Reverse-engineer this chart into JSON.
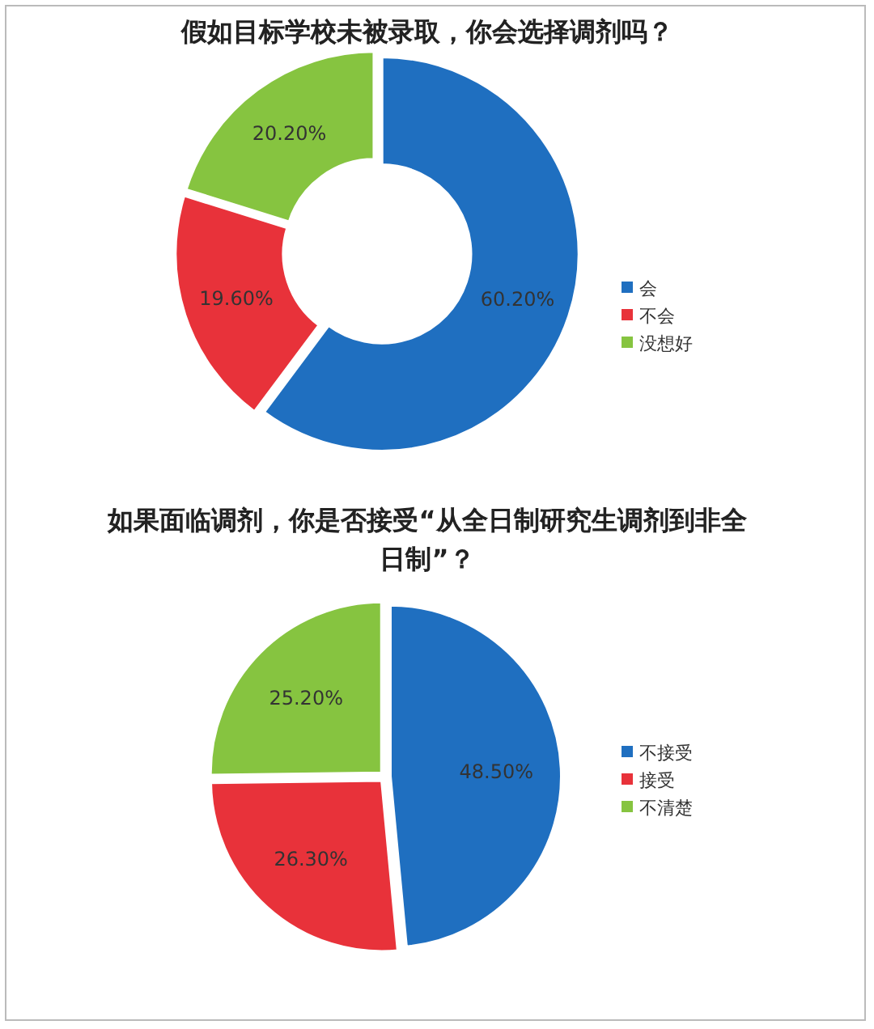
{
  "chart_data": [
    {
      "type": "donut",
      "title": "假如目标学校未被录取，你会选择调剂吗？",
      "categories": [
        "会",
        "不会",
        "没想好"
      ],
      "values": [
        60.2,
        19.6,
        20.2
      ],
      "colors": [
        "#1f6fc0",
        "#e8323a",
        "#86c440"
      ],
      "value_labels": [
        "60.20%",
        "19.60%",
        "20.20%"
      ],
      "legend": "right"
    },
    {
      "type": "pie",
      "title": "如果面临调剂，你是否接受“从全日制研究生调剂到非全日制”？",
      "categories": [
        "不接受",
        "接受",
        "不清楚"
      ],
      "values": [
        48.5,
        26.3,
        25.2
      ],
      "colors": [
        "#1f6fc0",
        "#e8323a",
        "#86c440"
      ],
      "value_labels": [
        "48.50%",
        "26.30%",
        "25.20%"
      ],
      "legend": "right"
    }
  ]
}
